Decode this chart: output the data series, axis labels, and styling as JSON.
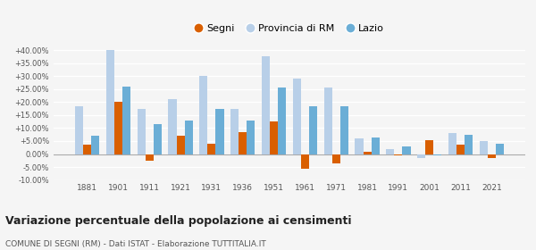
{
  "years": [
    1881,
    1901,
    1911,
    1921,
    1931,
    1936,
    1951,
    1961,
    1971,
    1981,
    1991,
    2001,
    2011,
    2021
  ],
  "segni": [
    3.5,
    20.0,
    -2.5,
    7.0,
    4.0,
    8.5,
    12.5,
    -5.5,
    -3.5,
    0.8,
    -0.5,
    5.5,
    3.5,
    -1.5
  ],
  "provincia_rm": [
    18.5,
    40.0,
    17.5,
    21.0,
    30.0,
    17.5,
    37.5,
    29.0,
    25.5,
    6.0,
    2.0,
    -1.5,
    8.0,
    5.0
  ],
  "lazio": [
    7.0,
    26.0,
    11.5,
    13.0,
    17.5,
    13.0,
    25.5,
    18.5,
    18.5,
    6.5,
    3.0,
    -0.5,
    7.5,
    4.0
  ],
  "color_segni": "#d95f00",
  "color_provincia": "#b8cfe8",
  "color_lazio": "#6baed6",
  "ylim": [
    -10,
    42
  ],
  "yticks": [
    -10,
    -5,
    0,
    5,
    10,
    15,
    20,
    25,
    30,
    35,
    40
  ],
  "title_main": "Variazione percentuale della popolazione ai censimenti",
  "title_sub": "COMUNE DI SEGNI (RM) - Dati ISTAT - Elaborazione TUTTITALIA.IT",
  "legend_labels": [
    "Segni",
    "Provincia di RM",
    "Lazio"
  ],
  "background_color": "#f5f5f5",
  "grid_color": "#ffffff"
}
